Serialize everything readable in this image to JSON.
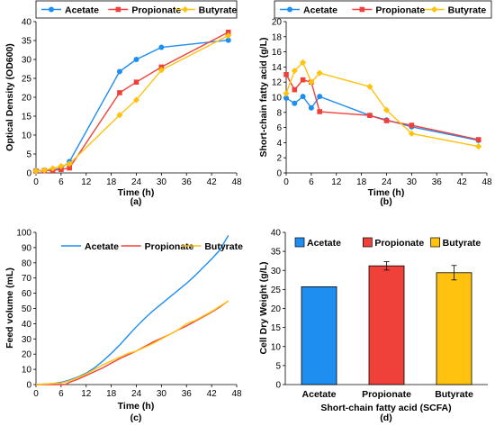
{
  "colors": {
    "acetate": "#1f8ef1",
    "propionate": "#f0403a",
    "butyrate": "#ffc20e"
  },
  "chart_data": [
    {
      "id": "a",
      "type": "line",
      "caption": "(a)",
      "title": "",
      "xlabel": "Time (h)",
      "ylabel": "Optical Density (OD600)",
      "xlim": [
        0,
        48
      ],
      "ylim": [
        0,
        40
      ],
      "xticks": [
        0,
        6,
        12,
        18,
        24,
        30,
        36,
        42,
        48
      ],
      "yticks": [
        0,
        5,
        10,
        15,
        20,
        25,
        30,
        35,
        40
      ],
      "grid": false,
      "legend_position": "top",
      "markers": true,
      "series": [
        {
          "name": "Acetate",
          "color_key": "acetate",
          "marker": "circle",
          "x": [
            0,
            2,
            4,
            6,
            8,
            20,
            24,
            30,
            46
          ],
          "y": [
            0.6,
            0.7,
            0.8,
            1.2,
            3.0,
            26.8,
            30.0,
            33.2,
            35.1
          ]
        },
        {
          "name": "Propionate",
          "color_key": "propionate",
          "marker": "square",
          "x": [
            0,
            2,
            4,
            6,
            8,
            20,
            24,
            30,
            46
          ],
          "y": [
            0.5,
            0.6,
            0.7,
            0.9,
            1.3,
            21.2,
            24.0,
            28.0,
            37.2
          ]
        },
        {
          "name": "Butyrate",
          "color_key": "butyrate",
          "marker": "diamond",
          "x": [
            0,
            2,
            4,
            6,
            8,
            20,
            24,
            30,
            46
          ],
          "y": [
            0.5,
            0.7,
            1.2,
            1.8,
            2.4,
            15.3,
            19.3,
            27.2,
            36.3
          ]
        }
      ]
    },
    {
      "id": "b",
      "type": "line",
      "caption": "(b)",
      "title": "",
      "xlabel": "Time (h)",
      "ylabel": "Short-chain fatty acid (g/L)",
      "xlim": [
        0,
        48
      ],
      "ylim": [
        0,
        20
      ],
      "xticks": [
        0,
        6,
        12,
        18,
        24,
        30,
        36,
        42,
        48
      ],
      "yticks": [
        0,
        2,
        4,
        6,
        8,
        10,
        12,
        14,
        16,
        18,
        20
      ],
      "grid": false,
      "legend_position": "top",
      "markers": true,
      "series": [
        {
          "name": "Acetate",
          "color_key": "acetate",
          "marker": "circle",
          "x": [
            0,
            2,
            4,
            6,
            8,
            20,
            24,
            30,
            46
          ],
          "y": [
            9.9,
            9.2,
            10.1,
            8.6,
            10.1,
            7.6,
            7.0,
            6.1,
            4.3
          ]
        },
        {
          "name": "Propionate",
          "color_key": "propionate",
          "marker": "square",
          "x": [
            0,
            2,
            4,
            6,
            8,
            20,
            24,
            30,
            46
          ],
          "y": [
            13.0,
            11.0,
            12.3,
            12.0,
            8.1,
            7.6,
            6.9,
            6.3,
            4.4
          ]
        },
        {
          "name": "Butyrate",
          "color_key": "butyrate",
          "marker": "diamond",
          "x": [
            0,
            2,
            4,
            6,
            8,
            20,
            24,
            30,
            46
          ],
          "y": [
            10.5,
            13.5,
            14.6,
            12.0,
            13.2,
            11.4,
            8.3,
            5.2,
            3.5
          ]
        }
      ]
    },
    {
      "id": "c",
      "type": "line",
      "caption": "(c)",
      "title": "",
      "xlabel": "Time (h)",
      "ylabel": "Feed volume (mL)",
      "xlim": [
        0,
        48
      ],
      "ylim": [
        0,
        100
      ],
      "xticks": [
        0,
        6,
        12,
        18,
        24,
        30,
        36,
        42,
        48
      ],
      "yticks": [
        0,
        10,
        20,
        30,
        40,
        50,
        60,
        70,
        80,
        90,
        100
      ],
      "grid": false,
      "legend_position": "top",
      "markers": false,
      "series": [
        {
          "name": "Acetate",
          "color_key": "acetate",
          "x": [
            0,
            4,
            6,
            8,
            10,
            12,
            14,
            16,
            18,
            20,
            22,
            24,
            26,
            28,
            30,
            32,
            34,
            36,
            38,
            40,
            42,
            44,
            46
          ],
          "y": [
            0,
            0.6,
            1.5,
            3,
            5,
            7.5,
            11,
            15.5,
            20.5,
            26,
            32,
            38,
            43.5,
            48.5,
            53,
            57.5,
            62,
            66.5,
            71.5,
            77,
            82.5,
            88.5,
            98
          ]
        },
        {
          "name": "Propionate",
          "color_key": "propionate",
          "x": [
            0,
            7,
            8,
            10,
            12,
            14,
            16,
            18,
            20,
            22,
            24,
            26,
            28,
            30,
            32,
            34,
            36,
            38,
            40,
            42,
            44,
            46
          ],
          "y": [
            0,
            0,
            1.5,
            3.5,
            6,
            8.5,
            11,
            14,
            17,
            19.5,
            22,
            25,
            28,
            30.5,
            33,
            36,
            38.5,
            41.5,
            44.5,
            47.5,
            51,
            55
          ]
        },
        {
          "name": "Butyrate",
          "color_key": "butyrate",
          "x": [
            0,
            6,
            8,
            10,
            12,
            14,
            16,
            18,
            20,
            22,
            24,
            26,
            28,
            30,
            32,
            34,
            35,
            36,
            38,
            40,
            42,
            44,
            46
          ],
          "y": [
            0,
            1,
            2.5,
            4.5,
            7,
            10,
            13,
            15.5,
            18,
            20.5,
            22,
            24.5,
            27,
            30,
            33,
            36,
            38,
            40,
            42,
            45,
            48,
            51.5,
            55
          ]
        }
      ]
    },
    {
      "id": "d",
      "type": "bar",
      "caption": "(d)",
      "title": "",
      "xlabel": "Short-chain fatty acid (SCFA)",
      "ylabel": "Cell Dry Weight (g/L)",
      "ylim": [
        0,
        40
      ],
      "yticks": [
        0,
        5,
        10,
        15,
        20,
        25,
        30,
        35,
        40
      ],
      "grid": false,
      "legend_position": "top",
      "categories": [
        "Acetate",
        "Propionate",
        "Butyrate"
      ],
      "values": [
        25.7,
        31.2,
        29.4
      ],
      "errors": [
        0,
        1.1,
        1.9
      ],
      "color_keys": [
        "acetate",
        "propionate",
        "butyrate"
      ]
    }
  ]
}
